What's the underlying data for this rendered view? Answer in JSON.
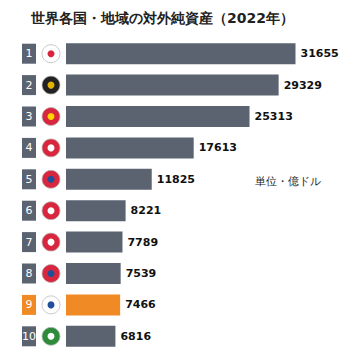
{
  "chart_data": {
    "type": "bar",
    "title": "世界各国・地域の対外純資産（2022年）",
    "annotation": "単位・億ドル",
    "categories": [
      "1",
      "2",
      "3",
      "4",
      "5",
      "6",
      "7",
      "8",
      "9",
      "10"
    ],
    "values": [
      31655,
      29329,
      25313,
      17613,
      11825,
      8221,
      7789,
      7539,
      7466,
      6816
    ],
    "colors": [
      "#5b6371",
      "#5b6371",
      "#5b6371",
      "#5b6371",
      "#5b6371",
      "#5b6371",
      "#5b6371",
      "#5b6371",
      "#f08a24",
      "#5b6371"
    ],
    "orientation": "horizontal",
    "data_labels": true,
    "tick_labels": "y",
    "grid": false,
    "xlim": [
      0,
      40000
    ],
    "xticks": [
      0,
      40000
    ]
  }
}
